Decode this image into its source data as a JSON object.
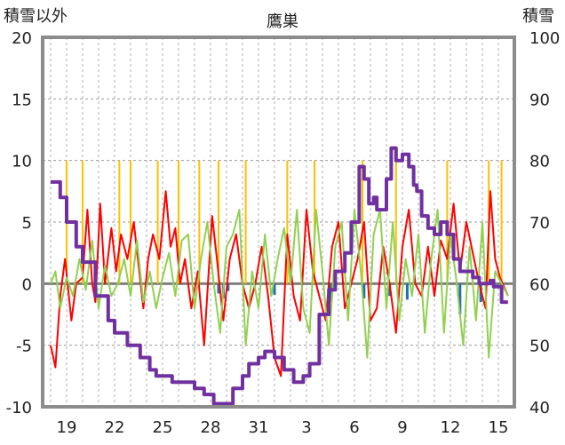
{
  "chart_data": {
    "type": "line",
    "title": "鷹巣",
    "ylabel_left": "積雪以外",
    "ylabel_right": "積雪",
    "ylim_left": [
      -10,
      20
    ],
    "ylim_right": [
      40,
      100
    ],
    "yticks_left": [
      "20",
      "15",
      "10",
      "5",
      "0",
      "-5",
      "-10"
    ],
    "yticks_right": [
      "100",
      "90",
      "80",
      "70",
      "60",
      "50",
      "40"
    ],
    "xticks": [
      "19",
      "22",
      "25",
      "28",
      "31",
      "3",
      "6",
      "9",
      "12",
      "15"
    ],
    "grid": true,
    "legend": "none",
    "series": [
      {
        "key": "snow_depth",
        "axis": "right",
        "color": "#7030A0",
        "x": [
          18,
          18.6,
          19,
          19.6,
          20,
          20.8,
          21.6,
          22,
          22.8,
          23.6,
          24.2,
          24.6,
          25.6,
          26.2,
          27,
          27.6,
          28.2,
          28.6,
          29.4,
          30,
          30.4,
          31,
          31.4,
          32,
          32.6,
          33.2,
          33.8,
          34.2,
          34.8,
          35.4,
          35.8,
          36.4,
          36.8,
          37.3,
          37.6,
          37.9,
          38.2,
          38.4,
          38.7,
          39,
          39.3,
          39.6,
          40,
          40.4,
          40.7,
          40.9,
          41.2,
          41.6,
          42,
          42.4,
          42.8,
          43.2,
          43.6,
          44,
          44.4,
          44.8,
          45.2,
          45.5,
          45.7,
          46.2,
          46.6
        ],
        "values": [
          76.5,
          74,
          70,
          66,
          63.5,
          58,
          54,
          52,
          50,
          48,
          46,
          45,
          44,
          44,
          43,
          42,
          40.5,
          40.5,
          43,
          45,
          47,
          48,
          49,
          48,
          46,
          44,
          45,
          47,
          55,
          59,
          62,
          65,
          70,
          79,
          77,
          73,
          74,
          72,
          72,
          77,
          82,
          80,
          81,
          79,
          76,
          75,
          71,
          69,
          68,
          70,
          68,
          64,
          62,
          62,
          61,
          60,
          60,
          60.5,
          59.5,
          57,
          57
        ]
      },
      {
        "key": "red",
        "axis": "left",
        "color": "#FF0000",
        "x": [
          18,
          18.3,
          18.6,
          18.9,
          19.3,
          19.6,
          20,
          20.3,
          20.6,
          20.8,
          21.1,
          21.4,
          21.8,
          22.1,
          22.4,
          22.8,
          23.2,
          23.5,
          23.8,
          24.1,
          24.4,
          24.8,
          25.2,
          25.5,
          25.8,
          26.1,
          26.4,
          26.8,
          27.2,
          27.6,
          28.1,
          28.4,
          28.8,
          29.2,
          29.6,
          30,
          30.4,
          30.8,
          31.2,
          31.6,
          32,
          32.4,
          32.8,
          33.2,
          33.6,
          34,
          34.4,
          34.8,
          35.2,
          35.6,
          36,
          36.4,
          36.8,
          37.2,
          37.6,
          38,
          38.4,
          38.8,
          39.2,
          39.6,
          40,
          40.4,
          40.8,
          41.2,
          41.6,
          42,
          42.4,
          42.8,
          43.2,
          43.6,
          44,
          44.4,
          44.8,
          45.2,
          45.5,
          45.8,
          46.1,
          46.6
        ],
        "values": [
          -5,
          -6.8,
          -1,
          2,
          -3,
          0,
          0.5,
          6,
          0,
          -1.5,
          6.5,
          0,
          4.5,
          1,
          4,
          2,
          5,
          1.5,
          -2,
          2,
          4,
          2,
          7.5,
          3,
          4.5,
          0,
          2,
          -2,
          1,
          -5,
          5.5,
          2,
          -3,
          2,
          4,
          0,
          -2,
          0,
          3,
          -1,
          -6,
          -7.5,
          4,
          -1,
          -3,
          6,
          1,
          -1,
          -3,
          3,
          5,
          -2,
          0,
          2,
          5,
          -3,
          -2,
          3,
          0,
          -4,
          3,
          6,
          0,
          -1,
          3,
          -1,
          3.5,
          2,
          6.5,
          1,
          5,
          2.5,
          0,
          -2,
          7.5,
          2,
          0.5,
          -1
        ]
      },
      {
        "key": "green",
        "axis": "left",
        "color": "#92D050",
        "x": [
          18,
          18.3,
          18.6,
          19,
          19.4,
          19.8,
          20.2,
          20.6,
          21,
          21.4,
          21.8,
          22.2,
          22.6,
          23,
          23.4,
          23.8,
          24.2,
          24.6,
          25,
          25.4,
          25.8,
          26.2,
          26.6,
          27,
          27.4,
          27.8,
          28.2,
          28.6,
          29,
          29.4,
          29.8,
          30.2,
          30.6,
          31,
          31.4,
          31.8,
          32.2,
          32.6,
          33,
          33.4,
          33.8,
          34.2,
          34.6,
          35,
          35.4,
          35.8,
          36.2,
          36.6,
          37,
          37.4,
          37.8,
          38.2,
          38.6,
          39,
          39.4,
          39.8,
          40.2,
          40.6,
          41,
          41.4,
          41.8,
          42.2,
          42.6,
          43,
          43.4,
          43.8,
          44.2,
          44.6,
          45,
          45.4,
          45.8,
          46.2,
          46.6
        ],
        "values": [
          0,
          1,
          -2,
          0.5,
          -1,
          2,
          -0.5,
          3.5,
          -2,
          1.5,
          -1,
          0,
          2,
          -1,
          3.5,
          -1.5,
          1,
          -2,
          0.5,
          2.5,
          -1,
          3.5,
          4,
          -2,
          2,
          5,
          0,
          -4,
          3,
          4,
          6,
          -5,
          1,
          -2,
          4,
          -1,
          2,
          4.5,
          0,
          6,
          -2,
          -4,
          6,
          1,
          -5,
          3,
          5,
          -3,
          6,
          1,
          -6,
          4,
          6,
          -2,
          5,
          -3,
          2,
          -1,
          4,
          -4,
          2,
          6,
          -4,
          4,
          0,
          -5,
          3,
          -3,
          5,
          -6,
          1,
          0,
          -1
        ]
      },
      {
        "key": "yellow",
        "axis": "left",
        "color": "#FFC000",
        "x": [
          19,
          20,
          22.3,
          23,
          24.7,
          26,
          27.3,
          28.5,
          30.2,
          32.8,
          34.5,
          37.5,
          39.6,
          42.8,
          45.4,
          46.2
        ],
        "values": [
          10,
          10,
          10,
          10,
          10,
          10,
          10,
          10,
          10,
          10,
          10,
          10,
          10,
          10,
          10,
          10
        ]
      },
      {
        "key": "blue",
        "axis": "left",
        "color": "#1F6FB4",
        "x": [
          28.5,
          28.8,
          29.1,
          32,
          35.5,
          37.6,
          39.2,
          40.3,
          43.6,
          44.9
        ],
        "values": [
          -0.8,
          -1.2,
          -0.6,
          -0.9,
          -1.5,
          -1.2,
          -1,
          -1.3,
          -2.5,
          -1.5
        ]
      }
    ]
  }
}
